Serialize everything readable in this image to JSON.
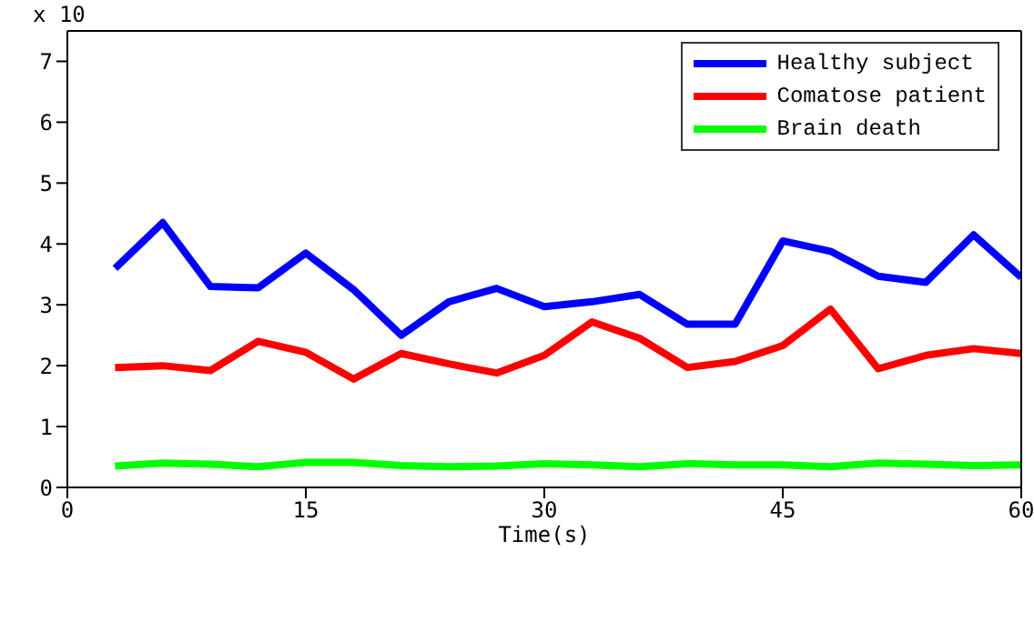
{
  "chart_data": {
    "type": "line",
    "xlabel": "Time(s)",
    "annotations": [
      "x 10"
    ],
    "x": [
      3,
      6,
      9,
      12,
      15,
      18,
      21,
      24,
      27,
      30,
      33,
      36,
      39,
      42,
      45,
      48,
      51,
      54,
      57,
      60
    ],
    "xlim": [
      0,
      60
    ],
    "xticks": [
      0,
      15,
      30,
      45,
      60
    ],
    "ylim": [
      0,
      7.5
    ],
    "yticks": [
      0,
      1,
      2,
      3,
      4,
      5,
      6,
      7
    ],
    "legend": "top right",
    "grid": false,
    "line_style": "solid",
    "series": [
      {
        "name": "Healthy subject",
        "color": "#0000ff",
        "values": [
          3.6,
          4.35,
          3.3,
          3.28,
          3.85,
          3.25,
          2.5,
          3.05,
          3.27,
          2.97,
          3.05,
          3.17,
          2.68,
          2.68,
          4.05,
          3.88,
          3.47,
          3.37,
          4.15,
          3.45
        ]
      },
      {
        "name": "Comatose patient",
        "color": "#ff0000",
        "values": [
          1.97,
          2.0,
          1.92,
          2.4,
          2.22,
          1.78,
          2.2,
          2.03,
          1.88,
          2.17,
          2.72,
          2.45,
          1.97,
          2.07,
          2.33,
          2.93,
          1.95,
          2.17,
          2.28,
          2.2
        ]
      },
      {
        "name": "Brain death",
        "color": "#00ff00",
        "values": [
          0.35,
          0.4,
          0.38,
          0.34,
          0.41,
          0.41,
          0.36,
          0.34,
          0.35,
          0.39,
          0.37,
          0.34,
          0.39,
          0.37,
          0.37,
          0.34,
          0.4,
          0.38,
          0.36,
          0.37
        ]
      }
    ]
  }
}
